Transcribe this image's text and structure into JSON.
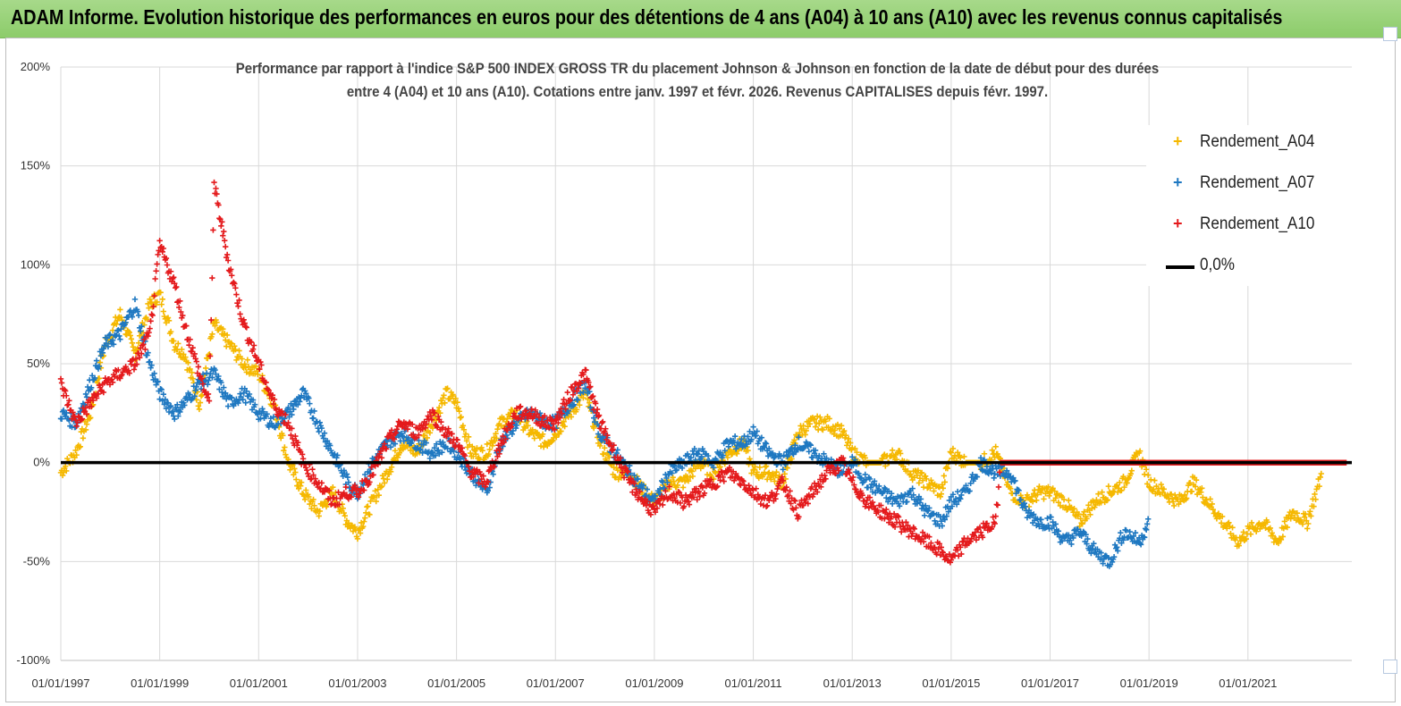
{
  "header": {
    "title": "ADAM Informe. Evolution historique des performances en euros pour des détentions de 4 ans (A04) à 10 ans (A10) avec les revenus connus capitalisés"
  },
  "chart_data": {
    "type": "scatter",
    "title_line1": "Performance par rapport à l'indice S&P 500 INDEX GROSS TR  du placement Johnson & Johnson en fonction de la date de début pour des durées",
    "title_line2": "entre 4 (A04) et 10 ans (A10).  Cotations entre janv. 1997 et févr. 2026. Revenus CAPITALISES depuis févr. 1997.",
    "xlabel": "",
    "ylabel": "",
    "xlim": [
      1997.0,
      2023.1
    ],
    "ylim": [
      -100,
      200
    ],
    "y_ticks": [
      "200%",
      "150%",
      "100%",
      "50%",
      "0%",
      "-50%",
      "-100%"
    ],
    "x_ticks": [
      "01/01/1997",
      "01/01/1999",
      "01/01/2001",
      "01/01/2003",
      "01/01/2005",
      "01/01/2007",
      "01/01/2009",
      "01/01/2011",
      "01/01/2013",
      "01/01/2015",
      "01/01/2017",
      "01/01/2019",
      "01/01/2021"
    ],
    "grid": true,
    "legend_position": "top-right",
    "series": [
      {
        "name": "Rendement_A04",
        "color": "#F5B800",
        "marker": "+",
        "x": [
          1997.0,
          1997.3,
          1997.6,
          1997.9,
          1998.2,
          1998.5,
          1998.8,
          1999.0,
          1999.3,
          1999.5,
          1999.8,
          2000.1,
          2000.4,
          2000.7,
          2001.0,
          2001.3,
          2001.6,
          2001.9,
          2002.2,
          2002.5,
          2002.8,
          2003.0,
          2003.3,
          2003.6,
          2003.9,
          2004.2,
          2004.5,
          2004.8,
          2005.0,
          2005.3,
          2005.6,
          2005.9,
          2006.2,
          2006.5,
          2006.8,
          2007.0,
          2007.3,
          2007.6,
          2007.9,
          2008.2,
          2008.5,
          2008.8,
          2009.0,
          2009.3,
          2009.6,
          2009.9,
          2010.2,
          2010.5,
          2010.8,
          2011.0,
          2011.3,
          2011.6,
          2011.9,
          2012.2,
          2012.5,
          2012.8,
          2013.0,
          2013.3,
          2013.6,
          2013.9,
          2014.2,
          2014.5,
          2014.8,
          2015.0,
          2015.3,
          2015.6,
          2015.9,
          2016.2,
          2016.5,
          2016.8,
          2017.0,
          2017.3,
          2017.6,
          2017.9,
          2018.2,
          2018.5,
          2018.8,
          2019.0,
          2019.3,
          2019.6,
          2019.9,
          2020.2,
          2020.5,
          2020.8,
          2021.0,
          2021.3,
          2021.6,
          2021.9,
          2022.2,
          2022.5
        ],
        "y": [
          -5,
          5,
          25,
          60,
          75,
          55,
          80,
          85,
          60,
          55,
          30,
          70,
          60,
          50,
          45,
          30,
          0,
          -15,
          -25,
          -15,
          -30,
          -35,
          -20,
          -5,
          10,
          5,
          20,
          35,
          30,
          5,
          5,
          20,
          25,
          15,
          10,
          15,
          25,
          35,
          10,
          -5,
          -5,
          -15,
          -20,
          -10,
          -10,
          0,
          -5,
          5,
          10,
          -5,
          -5,
          -10,
          15,
          20,
          20,
          15,
          5,
          0,
          0,
          5,
          -5,
          -10,
          -15,
          5,
          0,
          0,
          5,
          -15,
          -20,
          -15,
          -15,
          -20,
          -30,
          -20,
          -15,
          -10,
          5,
          -10,
          -15,
          -20,
          -10,
          -20,
          -30,
          -40,
          -35,
          -30,
          -40,
          -25,
          -30,
          -5
        ]
      },
      {
        "name": "Rendement_A07",
        "color": "#1F78C1",
        "marker": "+",
        "x": [
          1997.0,
          1997.3,
          1997.6,
          1997.9,
          1998.2,
          1998.5,
          1998.8,
          1999.0,
          1999.3,
          1999.5,
          1999.8,
          2000.1,
          2000.4,
          2000.7,
          2001.0,
          2001.3,
          2001.6,
          2001.9,
          2002.2,
          2002.5,
          2002.8,
          2003.0,
          2003.3,
          2003.6,
          2003.9,
          2004.2,
          2004.5,
          2004.8,
          2005.0,
          2005.3,
          2005.6,
          2005.9,
          2006.2,
          2006.5,
          2006.8,
          2007.0,
          2007.3,
          2007.6,
          2007.9,
          2008.2,
          2008.5,
          2008.8,
          2009.0,
          2009.3,
          2009.6,
          2009.9,
          2010.2,
          2010.5,
          2010.8,
          2011.0,
          2011.3,
          2011.6,
          2011.9,
          2012.2,
          2012.5,
          2012.8,
          2013.0,
          2013.3,
          2013.6,
          2013.9,
          2014.2,
          2014.5,
          2014.8,
          2015.0,
          2015.3,
          2015.6,
          2015.9,
          2016.2,
          2016.5,
          2016.8,
          2017.0,
          2017.3,
          2017.6,
          2017.9,
          2018.2,
          2018.5,
          2018.8,
          2019.0
        ],
        "y": [
          25,
          20,
          40,
          60,
          65,
          80,
          50,
          35,
          25,
          30,
          40,
          45,
          30,
          35,
          25,
          20,
          25,
          35,
          20,
          5,
          -10,
          -15,
          0,
          10,
          15,
          10,
          5,
          10,
          5,
          -5,
          -15,
          10,
          20,
          25,
          20,
          20,
          30,
          40,
          15,
          5,
          -5,
          -15,
          -20,
          -5,
          0,
          5,
          0,
          10,
          10,
          15,
          5,
          0,
          10,
          5,
          0,
          -5,
          0,
          -10,
          -15,
          -20,
          -15,
          -25,
          -30,
          -20,
          -15,
          0,
          -5,
          -5,
          -25,
          -30,
          -30,
          -40,
          -35,
          -45,
          -50,
          -35,
          -40,
          -30
        ]
      },
      {
        "name": "Rendement_A10",
        "color": "#E41A1C",
        "marker": "+",
        "x": [
          1997.0,
          1997.3,
          1997.6,
          1997.9,
          1998.2,
          1998.5,
          1998.8,
          1999.0,
          1999.3,
          1999.5,
          1999.8,
          2000.0,
          2000.1,
          2000.4,
          2000.7,
          2001.0,
          2001.3,
          2001.6,
          2001.9,
          2002.2,
          2002.5,
          2002.8,
          2003.0,
          2003.3,
          2003.6,
          2003.9,
          2004.2,
          2004.5,
          2004.8,
          2005.0,
          2005.3,
          2005.6,
          2005.9,
          2006.2,
          2006.5,
          2006.8,
          2007.0,
          2007.3,
          2007.6,
          2007.9,
          2008.2,
          2008.5,
          2008.8,
          2009.0,
          2009.3,
          2009.6,
          2009.9,
          2010.2,
          2010.5,
          2010.8,
          2011.0,
          2011.3,
          2011.6,
          2011.9,
          2012.2,
          2012.5,
          2012.8,
          2013.0,
          2013.3,
          2013.6,
          2013.9,
          2014.2,
          2014.5,
          2014.8,
          2015.0,
          2015.3,
          2015.6,
          2015.9,
          2016.0,
          2016.5,
          2017.0,
          2017.5,
          2018.0,
          2018.5,
          2019.0,
          2019.5,
          2020.0,
          2020.5,
          2021.0,
          2021.5,
          2022.0,
          2022.5,
          2023.0
        ],
        "y": [
          40,
          20,
          30,
          40,
          45,
          50,
          65,
          110,
          90,
          70,
          45,
          30,
          140,
          100,
          70,
          50,
          30,
          20,
          0,
          -10,
          -20,
          -15,
          -15,
          -5,
          10,
          20,
          15,
          25,
          15,
          10,
          -5,
          -10,
          10,
          25,
          25,
          20,
          20,
          35,
          45,
          20,
          5,
          -10,
          -20,
          -25,
          -15,
          -20,
          -15,
          -10,
          -5,
          -10,
          -15,
          -20,
          -10,
          -25,
          -15,
          -5,
          0,
          -10,
          -20,
          -25,
          -30,
          -35,
          -40,
          -45,
          -50,
          -40,
          -35,
          -30,
          0,
          0,
          0,
          0,
          0,
          0,
          0,
          0,
          0,
          0,
          0,
          0,
          0,
          0,
          0
        ]
      }
    ],
    "reference_line": {
      "name": "0,0%",
      "value": 0,
      "color": "#000000"
    }
  }
}
